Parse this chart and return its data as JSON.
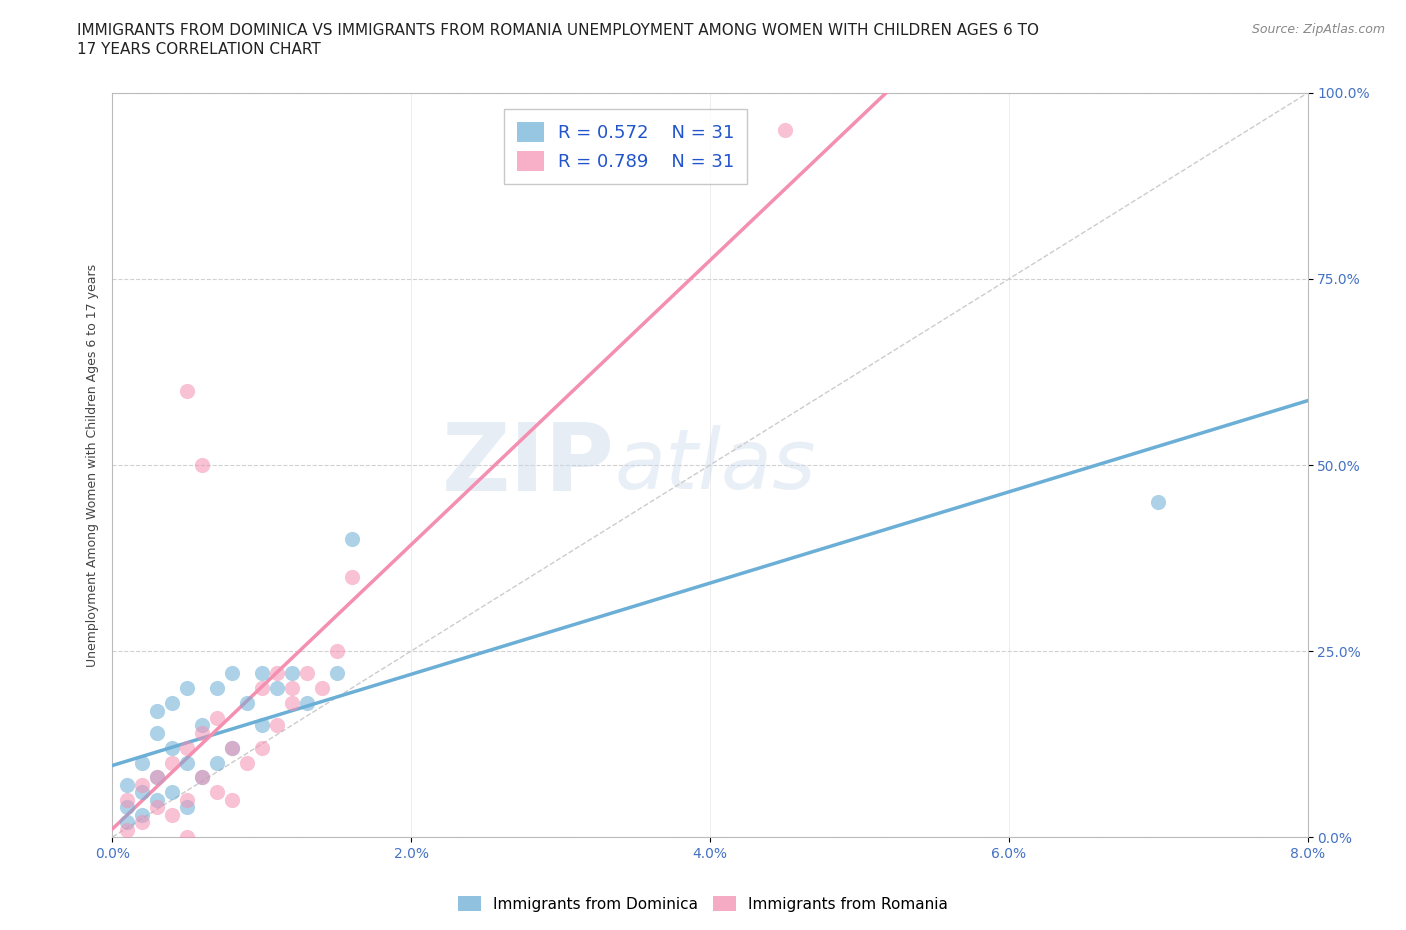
{
  "title_line1": "IMMIGRANTS FROM DOMINICA VS IMMIGRANTS FROM ROMANIA UNEMPLOYMENT AMONG WOMEN WITH CHILDREN AGES 6 TO",
  "title_line2": "17 YEARS CORRELATION CHART",
  "source": "Source: ZipAtlas.com",
  "ylabel": "Unemployment Among Women with Children Ages 6 to 17 years",
  "xlim": [
    0.0,
    0.08
  ],
  "ylim": [
    0.0,
    1.0
  ],
  "xticks": [
    0.0,
    0.02,
    0.04,
    0.06,
    0.08
  ],
  "xticklabels": [
    "0.0%",
    "2.0%",
    "4.0%",
    "6.0%",
    "8.0%"
  ],
  "yticks": [
    0.0,
    0.25,
    0.5,
    0.75,
    1.0
  ],
  "yticklabels": [
    "0.0%",
    "25.0%",
    "50.0%",
    "75.0%",
    "100.0%"
  ],
  "dominica_color": "#6baed6",
  "romania_color": "#f48fb1",
  "dominica_R": 0.572,
  "dominica_N": 31,
  "romania_R": 0.789,
  "romania_N": 31,
  "watermark_text": "ZIPatlas",
  "dominica_x": [
    0.001,
    0.001,
    0.001,
    0.002,
    0.002,
    0.002,
    0.003,
    0.003,
    0.003,
    0.003,
    0.004,
    0.004,
    0.004,
    0.005,
    0.005,
    0.005,
    0.006,
    0.006,
    0.007,
    0.007,
    0.008,
    0.008,
    0.009,
    0.01,
    0.01,
    0.011,
    0.012,
    0.013,
    0.015,
    0.016,
    0.07
  ],
  "dominica_y": [
    0.02,
    0.04,
    0.07,
    0.03,
    0.06,
    0.1,
    0.05,
    0.08,
    0.14,
    0.17,
    0.06,
    0.12,
    0.18,
    0.04,
    0.1,
    0.2,
    0.08,
    0.15,
    0.1,
    0.2,
    0.12,
    0.22,
    0.18,
    0.15,
    0.22,
    0.2,
    0.22,
    0.18,
    0.22,
    0.4,
    0.45
  ],
  "romania_x": [
    0.001,
    0.001,
    0.002,
    0.002,
    0.003,
    0.003,
    0.004,
    0.004,
    0.005,
    0.005,
    0.005,
    0.006,
    0.006,
    0.007,
    0.007,
    0.008,
    0.008,
    0.009,
    0.01,
    0.01,
    0.011,
    0.011,
    0.012,
    0.012,
    0.013,
    0.014,
    0.015,
    0.016,
    0.045,
    0.005,
    0.006
  ],
  "romania_y": [
    0.01,
    0.05,
    0.02,
    0.07,
    0.04,
    0.08,
    0.03,
    0.1,
    0.05,
    0.12,
    0.0,
    0.08,
    0.14,
    0.06,
    0.16,
    0.05,
    0.12,
    0.1,
    0.12,
    0.2,
    0.15,
    0.22,
    0.18,
    0.2,
    0.22,
    0.2,
    0.25,
    0.35,
    0.95,
    0.6,
    0.5
  ],
  "background_color": "#ffffff",
  "grid_color": "#cccccc",
  "title_fontsize": 11,
  "axis_label_fontsize": 9,
  "tick_fontsize": 10,
  "legend_fontsize": 13,
  "tick_color": "#4472c4",
  "scatter_size": 120,
  "scatter_alpha": 0.55
}
